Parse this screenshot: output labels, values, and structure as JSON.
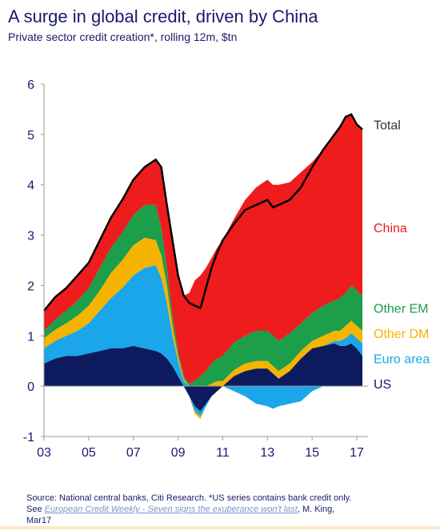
{
  "chart_data": {
    "type": "area",
    "title": "A surge in global credit, driven by China",
    "subtitle": "Private sector credit creation*, rolling 12m, $tn",
    "xlabel": "",
    "ylabel": "",
    "xlim": [
      2003.0,
      2017.5
    ],
    "ylim": [
      -1,
      6
    ],
    "x_tick_labels": [
      "03",
      "05",
      "07",
      "09",
      "11",
      "13",
      "15",
      "17"
    ],
    "y_tick_labels": [
      "-1",
      "0",
      "1",
      "2",
      "3",
      "4",
      "5",
      "6"
    ],
    "x": [
      2003.0,
      2003.5,
      2004.0,
      2004.5,
      2005.0,
      2005.5,
      2006.0,
      2006.5,
      2007.0,
      2007.5,
      2008.0,
      2008.25,
      2008.5,
      2008.75,
      2009.0,
      2009.25,
      2009.5,
      2009.75,
      2010.0,
      2010.25,
      2010.5,
      2010.75,
      2011.0,
      2011.5,
      2012.0,
      2012.5,
      2013.0,
      2013.25,
      2013.5,
      2014.0,
      2014.5,
      2015.0,
      2015.5,
      2016.0,
      2016.25,
      2016.5,
      2016.75,
      2017.0,
      2017.25
    ],
    "series": [
      {
        "name": "US",
        "color": "#0d1b5e",
        "values": [
          0.45,
          0.55,
          0.6,
          0.6,
          0.65,
          0.7,
          0.75,
          0.75,
          0.8,
          0.75,
          0.7,
          0.65,
          0.55,
          0.4,
          0.2,
          0.0,
          -0.2,
          -0.4,
          -0.5,
          -0.35,
          -0.2,
          -0.1,
          0.0,
          0.2,
          0.3,
          0.35,
          0.35,
          0.25,
          0.15,
          0.3,
          0.55,
          0.75,
          0.8,
          0.85,
          0.8,
          0.8,
          0.85,
          0.75,
          0.6
        ]
      },
      {
        "name": "Euro area",
        "color": "#1aa6e8",
        "values": [
          0.3,
          0.35,
          0.4,
          0.5,
          0.6,
          0.8,
          1.0,
          1.2,
          1.4,
          1.6,
          1.7,
          1.5,
          1.1,
          0.6,
          0.3,
          0.1,
          0.0,
          -0.1,
          -0.1,
          -0.05,
          0.0,
          0.0,
          0.0,
          -0.1,
          -0.2,
          -0.35,
          -0.4,
          -0.45,
          -0.4,
          -0.35,
          -0.3,
          -0.1,
          0.0,
          0.05,
          0.1,
          0.15,
          0.2,
          0.2,
          0.25
        ]
      },
      {
        "name": "Other DM",
        "color": "#f5b400",
        "values": [
          0.2,
          0.22,
          0.25,
          0.3,
          0.35,
          0.4,
          0.5,
          0.55,
          0.6,
          0.6,
          0.5,
          0.45,
          0.35,
          0.2,
          0.1,
          0.05,
          0.0,
          -0.05,
          -0.05,
          0.0,
          0.05,
          0.1,
          0.1,
          0.12,
          0.15,
          0.15,
          0.15,
          0.15,
          0.15,
          0.15,
          0.15,
          0.15,
          0.2,
          0.2,
          0.2,
          0.25,
          0.25,
          0.25,
          0.25
        ]
      },
      {
        "name": "Other EM",
        "color": "#1c9e4a",
        "values": [
          0.15,
          0.2,
          0.25,
          0.3,
          0.35,
          0.45,
          0.5,
          0.55,
          0.6,
          0.65,
          0.7,
          0.55,
          0.35,
          0.2,
          0.1,
          0.05,
          0.05,
          0.1,
          0.2,
          0.3,
          0.4,
          0.45,
          0.5,
          0.55,
          0.55,
          0.6,
          0.6,
          0.6,
          0.6,
          0.6,
          0.55,
          0.55,
          0.6,
          0.6,
          0.65,
          0.65,
          0.7,
          0.7,
          0.7
        ]
      },
      {
        "name": "China",
        "color": "#ee1c1c",
        "values": [
          0.4,
          0.45,
          0.45,
          0.5,
          0.5,
          0.55,
          0.6,
          0.65,
          0.7,
          0.75,
          0.9,
          1.2,
          1.3,
          1.5,
          1.5,
          1.6,
          1.8,
          2.0,
          2.0,
          2.05,
          2.1,
          2.2,
          2.3,
          2.45,
          2.7,
          2.85,
          3.0,
          3.0,
          3.1,
          3.0,
          3.0,
          3.0,
          3.1,
          3.3,
          3.4,
          3.5,
          3.4,
          3.3,
          3.3
        ]
      }
    ],
    "total": {
      "name": "Total",
      "values": [
        1.5,
        1.77,
        1.95,
        2.2,
        2.45,
        2.9,
        3.35,
        3.7,
        4.1,
        4.35,
        4.5,
        4.35,
        3.6,
        2.9,
        2.2,
        1.8,
        1.65,
        1.6,
        1.55,
        1.95,
        2.35,
        2.65,
        2.9,
        3.22,
        3.5,
        3.6,
        3.7,
        3.55,
        3.6,
        3.7,
        3.95,
        4.35,
        4.7,
        5.0,
        5.15,
        5.35,
        5.4,
        5.2,
        5.1
      ]
    },
    "legend": {
      "placement": "right, beside series"
    },
    "grid": false
  },
  "source_text": "Source: National central banks, Citi Research. *US series contains bank credit only.",
  "source_see": "See ",
  "source_link": "European Credit Weekly - Seven signs the exuberance won't last",
  "source_author": ", M. King,",
  "source_date": "Mar17"
}
